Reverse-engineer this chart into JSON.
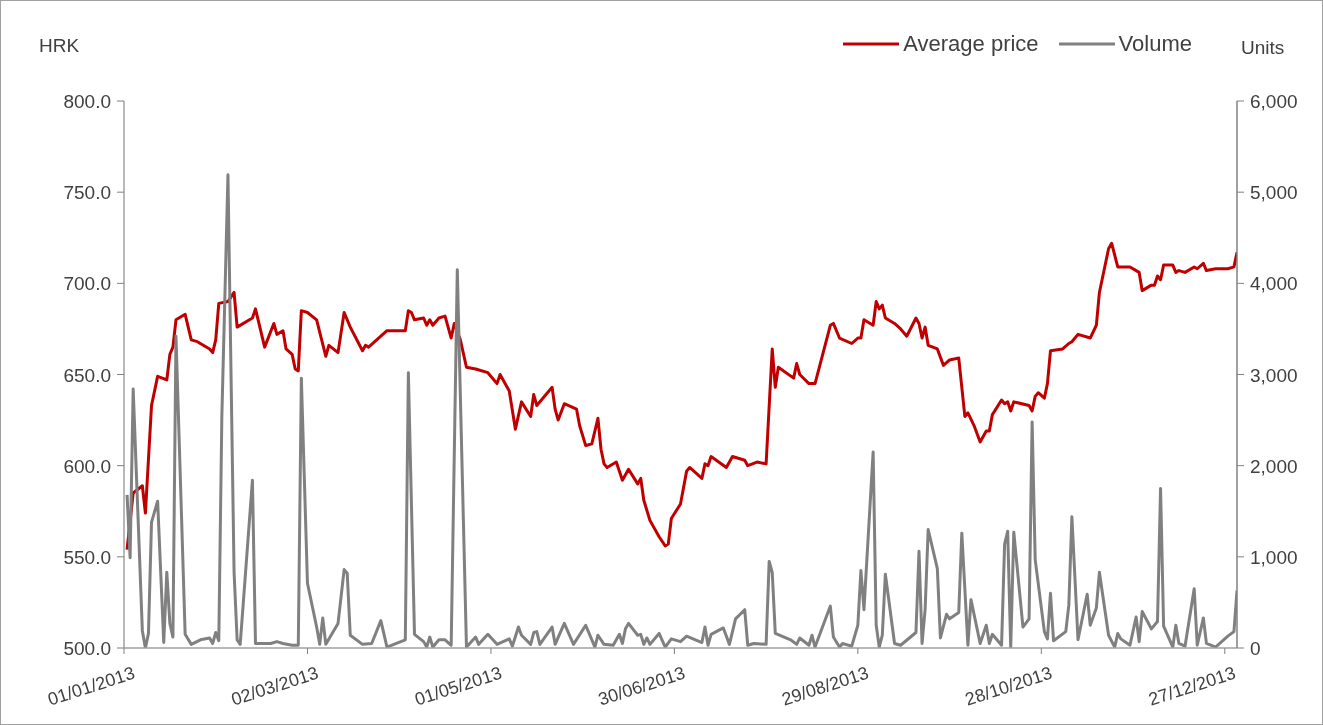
{
  "chart_data": {
    "type": "line",
    "ylabel": "HRK",
    "y2label": "Units",
    "legend": "top right",
    "xlim": [
      "2013-01-01",
      "2013-12-31"
    ],
    "xticks": [
      {
        "value": "2013-01-01",
        "label": "01/01/2013"
      },
      {
        "value": "2013-03-02",
        "label": "02/03/2013"
      },
      {
        "value": "2013-05-01",
        "label": "01/05/2013"
      },
      {
        "value": "2013-06-30",
        "label": "30/06/2013"
      },
      {
        "value": "2013-08-29",
        "label": "29/08/2013"
      },
      {
        "value": "2013-10-28",
        "label": "28/10/2013"
      },
      {
        "value": "2013-12-27",
        "label": "27/12/2013"
      }
    ],
    "ylim": [
      500,
      800
    ],
    "yticks": [
      {
        "value": 500,
        "label": "500.0"
      },
      {
        "value": 550,
        "label": "550.0"
      },
      {
        "value": 600,
        "label": "600.0"
      },
      {
        "value": 650,
        "label": "650.0"
      },
      {
        "value": 700,
        "label": "700.0"
      },
      {
        "value": 750,
        "label": "750.0"
      },
      {
        "value": 800,
        "label": "800.0"
      }
    ],
    "y2lim": [
      0,
      6000
    ],
    "y2ticks": [
      0,
      {
        "value": 1000,
        "label": "1,000"
      },
      {
        "value": 2000,
        "label": "2,000"
      },
      {
        "value": 3000,
        "label": "3,000"
      },
      {
        "value": 4000,
        "label": "4,000"
      },
      {
        "value": 5000,
        "label": "5,000"
      },
      {
        "value": 6000,
        "label": "6,000"
      }
    ],
    "series": [
      {
        "name": "Average price",
        "color": "#c00000",
        "x": [
          "2013-01-02",
          "2013-01-04",
          "2013-01-07",
          "2013-01-08",
          "2013-01-10",
          "2013-01-12",
          "2013-01-15",
          "2013-01-16",
          "2013-01-17",
          "2013-01-18",
          "2013-01-21",
          "2013-01-23",
          "2013-01-25",
          "2013-01-29",
          "2013-01-30",
          "2013-01-31",
          "2013-02-01",
          "2013-02-04",
          "2013-02-06",
          "2013-02-07",
          "2013-02-12",
          "2013-02-13",
          "2013-02-16",
          "2013-02-19",
          "2013-02-20",
          "2013-02-22",
          "2013-02-23",
          "2013-02-25",
          "2013-02-26",
          "2013-02-27",
          "2013-02-28",
          "2013-03-02",
          "2013-03-05",
          "2013-03-08",
          "2013-03-09",
          "2013-03-12",
          "2013-03-14",
          "2013-03-16",
          "2013-03-20",
          "2013-03-21",
          "2013-03-22",
          "2013-03-28",
          "2013-04-03",
          "2013-04-04",
          "2013-04-05",
          "2013-04-06",
          "2013-04-09",
          "2013-04-10",
          "2013-04-11",
          "2013-04-12",
          "2013-04-14",
          "2013-04-16",
          "2013-04-18",
          "2013-04-19",
          "2013-04-21",
          "2013-04-23",
          "2013-04-26",
          "2013-04-30",
          "2013-05-03",
          "2013-05-04",
          "2013-05-07",
          "2013-05-09",
          "2013-05-11",
          "2013-05-14",
          "2013-05-15",
          "2013-05-16",
          "2013-05-21",
          "2013-05-22",
          "2013-05-23",
          "2013-05-25",
          "2013-05-29",
          "2013-05-30",
          "2013-06-01",
          "2013-06-03",
          "2013-06-05",
          "2013-06-06",
          "2013-06-07",
          "2013-06-08",
          "2013-06-11",
          "2013-06-13",
          "2013-06-15",
          "2013-06-18",
          "2013-06-19",
          "2013-06-20",
          "2013-06-22",
          "2013-06-25",
          "2013-06-27",
          "2013-06-28",
          "2013-06-29",
          "2013-07-02",
          "2013-07-04",
          "2013-07-05",
          "2013-07-09",
          "2013-07-10",
          "2013-07-11",
          "2013-07-12",
          "2013-07-17",
          "2013-07-19",
          "2013-07-23",
          "2013-07-24",
          "2013-07-27",
          "2013-07-30",
          "2013-08-01",
          "2013-08-02",
          "2013-08-03",
          "2013-08-08",
          "2013-08-09",
          "2013-08-10",
          "2013-08-13",
          "2013-08-15",
          "2013-08-20",
          "2013-08-21",
          "2013-08-23",
          "2013-08-27",
          "2013-08-29",
          "2013-08-30",
          "2013-08-31",
          "2013-09-03",
          "2013-09-04",
          "2013-09-05",
          "2013-09-06",
          "2013-09-07",
          "2013-09-10",
          "2013-09-12",
          "2013-09-14",
          "2013-09-17",
          "2013-09-18",
          "2013-09-19",
          "2013-09-20",
          "2013-09-21",
          "2013-09-24",
          "2013-09-26",
          "2013-09-28",
          "2013-10-01",
          "2013-10-03",
          "2013-10-04",
          "2013-10-06",
          "2013-10-08",
          "2013-10-10",
          "2013-10-11",
          "2013-10-12",
          "2013-10-15",
          "2013-10-16",
          "2013-10-17",
          "2013-10-18",
          "2013-10-19",
          "2013-10-24",
          "2013-10-25",
          "2013-10-26",
          "2013-10-27",
          "2013-10-29",
          "2013-10-30",
          "2013-10-31",
          "2013-11-04",
          "2013-11-06",
          "2013-11-07",
          "2013-11-09",
          "2013-11-13",
          "2013-11-15",
          "2013-11-16",
          "2013-11-19",
          "2013-11-20",
          "2013-11-22",
          "2013-11-23",
          "2013-11-26",
          "2013-11-29",
          "2013-11-30",
          "2013-12-03",
          "2013-12-04",
          "2013-12-05",
          "2013-12-06",
          "2013-12-07",
          "2013-12-10",
          "2013-12-11",
          "2013-12-12",
          "2013-12-14",
          "2013-12-17",
          "2013-12-18",
          "2013-12-20",
          "2013-12-21",
          "2013-12-24",
          "2013-12-28",
          "2013-12-30",
          "2013-12-31"
        ],
        "values": [
          554,
          585,
          589,
          574,
          633,
          649,
          647,
          661,
          665,
          680,
          683,
          669,
          668,
          664,
          662,
          669,
          689,
          690,
          695,
          676,
          681,
          686,
          665,
          678,
          672,
          674,
          664,
          661,
          653,
          652,
          685,
          684,
          680,
          660,
          666,
          662,
          684,
          676,
          663,
          666,
          665,
          674,
          674,
          685,
          684,
          680,
          681,
          677,
          680,
          677,
          681,
          682,
          670,
          678,
          669,
          654,
          653,
          651,
          645,
          650,
          641,
          620,
          635,
          627,
          639,
          633,
          643,
          631,
          625,
          634,
          631,
          622,
          611,
          612,
          626,
          609,
          601,
          599,
          602,
          592,
          598,
          590,
          593,
          581,
          570,
          561,
          556,
          557,
          571,
          579,
          597,
          599,
          593,
          601,
          600,
          605,
          599,
          605,
          603,
          600,
          602,
          601,
          664,
          643,
          654,
          648,
          656,
          650,
          645,
          645,
          677,
          678,
          670,
          667,
          670,
          670,
          680,
          677,
          690,
          686,
          688,
          681,
          678,
          675,
          671,
          681,
          678,
          670,
          676,
          666,
          664,
          655,
          658,
          659,
          627,
          629,
          622,
          613,
          619,
          619,
          628,
          636,
          634,
          635,
          630,
          635,
          633,
          630,
          638,
          640,
          637,
          645,
          663,
          664,
          667,
          668,
          672,
          670,
          677,
          695,
          719,
          722,
          709,
          709,
          709,
          706,
          696,
          699,
          699,
          704,
          702,
          710,
          710,
          706,
          707,
          706,
          709,
          708,
          711,
          707,
          708,
          708,
          709,
          717
        ]
      },
      {
        "name": "Volume",
        "color": "#808080",
        "axis": "y2",
        "x": [
          "2013-01-02",
          "2013-01-03",
          "2013-01-04",
          "2013-01-07",
          "2013-01-08",
          "2013-01-09",
          "2013-01-10",
          "2013-01-12",
          "2013-01-14",
          "2013-01-15",
          "2013-01-16",
          "2013-01-17",
          "2013-01-18",
          "2013-01-21",
          "2013-01-23",
          "2013-01-26",
          "2013-01-29",
          "2013-01-30",
          "2013-01-31",
          "2013-02-01",
          "2013-02-02",
          "2013-02-04",
          "2013-02-06",
          "2013-02-07",
          "2013-02-08",
          "2013-02-12",
          "2013-02-13",
          "2013-02-18",
          "2013-02-20",
          "2013-02-22",
          "2013-02-25",
          "2013-02-27",
          "2013-02-28",
          "2013-03-02",
          "2013-03-05",
          "2013-03-06",
          "2013-03-07",
          "2013-03-08",
          "2013-03-12",
          "2013-03-14",
          "2013-03-15",
          "2013-03-16",
          "2013-03-20",
          "2013-03-23",
          "2013-03-26",
          "2013-03-28",
          "2013-04-03",
          "2013-04-04",
          "2013-04-06",
          "2013-04-09",
          "2013-04-10",
          "2013-04-11",
          "2013-04-12",
          "2013-04-14",
          "2013-04-16",
          "2013-04-18",
          "2013-04-20",
          "2013-04-23",
          "2013-04-26",
          "2013-04-27",
          "2013-04-30",
          "2013-05-03",
          "2013-05-07",
          "2013-05-08",
          "2013-05-10",
          "2013-05-11",
          "2013-05-14",
          "2013-05-15",
          "2013-05-16",
          "2013-05-17",
          "2013-05-21",
          "2013-05-22",
          "2013-05-25",
          "2013-05-28",
          "2013-06-01",
          "2013-06-04",
          "2013-06-05",
          "2013-06-07",
          "2013-06-10",
          "2013-06-12",
          "2013-06-13",
          "2013-06-14",
          "2013-06-15",
          "2013-06-18",
          "2013-06-19",
          "2013-06-20",
          "2013-06-21",
          "2013-06-22",
          "2013-06-25",
          "2013-06-27",
          "2013-06-29",
          "2013-07-02",
          "2013-07-04",
          "2013-07-09",
          "2013-07-10",
          "2013-07-11",
          "2013-07-12",
          "2013-07-16",
          "2013-07-18",
          "2013-07-20",
          "2013-07-23",
          "2013-07-24",
          "2013-07-26",
          "2013-07-30",
          "2013-07-31",
          "2013-08-01",
          "2013-08-02",
          "2013-08-07",
          "2013-08-09",
          "2013-08-10",
          "2013-08-13",
          "2013-08-14",
          "2013-08-15",
          "2013-08-20",
          "2013-08-21",
          "2013-08-23",
          "2013-08-24",
          "2013-08-27",
          "2013-08-29",
          "2013-08-30",
          "2013-08-31",
          "2013-09-03",
          "2013-09-04",
          "2013-09-05",
          "2013-09-06",
          "2013-09-07",
          "2013-09-10",
          "2013-09-12",
          "2013-09-17",
          "2013-09-18",
          "2013-09-19",
          "2013-09-20",
          "2013-09-21",
          "2013-09-24",
          "2013-09-25",
          "2013-09-27",
          "2013-09-28",
          "2013-10-01",
          "2013-10-02",
          "2013-10-04",
          "2013-10-05",
          "2013-10-08",
          "2013-10-10",
          "2013-10-11",
          "2013-10-12",
          "2013-10-15",
          "2013-10-16",
          "2013-10-17",
          "2013-10-18",
          "2013-10-19",
          "2013-10-22",
          "2013-10-24",
          "2013-10-25",
          "2013-10-26",
          "2013-10-29",
          "2013-10-30",
          "2013-10-31",
          "2013-11-01",
          "2013-11-05",
          "2013-11-06",
          "2013-11-07",
          "2013-11-09",
          "2013-11-12",
          "2013-11-13",
          "2013-11-15",
          "2013-11-16",
          "2013-11-19",
          "2013-11-21",
          "2013-11-22",
          "2013-11-23",
          "2013-11-26",
          "2013-11-28",
          "2013-11-29",
          "2013-11-30",
          "2013-12-03",
          "2013-12-05",
          "2013-12-06",
          "2013-12-07",
          "2013-12-10",
          "2013-12-11",
          "2013-12-12",
          "2013-12-14",
          "2013-12-17",
          "2013-12-18",
          "2013-12-20",
          "2013-12-21",
          "2013-12-24",
          "2013-12-28",
          "2013-12-30",
          "2013-12-31"
        ],
        "values": [
          1680,
          990,
          2840,
          190,
          0,
          160,
          1380,
          1610,
          60,
          830,
          270,
          120,
          3420,
          150,
          40,
          90,
          110,
          50,
          170,
          80,
          2540,
          5190,
          830,
          90,
          40,
          1840,
          50,
          50,
          70,
          50,
          30,
          30,
          2960,
          710,
          230,
          40,
          330,
          40,
          270,
          860,
          820,
          140,
          40,
          50,
          300,
          10,
          90,
          3020,
          150,
          70,
          10,
          120,
          10,
          90,
          90,
          30,
          4150,
          10,
          120,
          40,
          150,
          40,
          100,
          20,
          230,
          140,
          40,
          170,
          180,
          40,
          230,
          40,
          270,
          40,
          250,
          10,
          140,
          40,
          30,
          150,
          50,
          210,
          270,
          140,
          150,
          40,
          110,
          40,
          160,
          10,
          100,
          70,
          130,
          60,
          230,
          30,
          150,
          220,
          40,
          320,
          420,
          30,
          50,
          40,
          950,
          830,
          160,
          90,
          40,
          110,
          30,
          140,
          10,
          460,
          120,
          10,
          50,
          20,
          250,
          850,
          420,
          2150,
          250,
          10,
          140,
          810,
          50,
          30,
          170,
          1060,
          50,
          420,
          1300,
          870,
          110,
          370,
          320,
          390,
          1260,
          30,
          530,
          50,
          250,
          50,
          150,
          30,
          1140,
          1280,
          10,
          1270,
          230,
          320,
          2480,
          970,
          180,
          100,
          600,
          80,
          180,
          470,
          1440,
          90,
          590,
          250,
          440,
          830,
          140,
          10,
          160,
          100,
          30,
          340,
          70,
          400,
          210,
          290,
          1750,
          240,
          10,
          250,
          50,
          20,
          650,
          30,
          330,
          50,
          10,
          130,
          180,
          630
        ]
      }
    ]
  }
}
